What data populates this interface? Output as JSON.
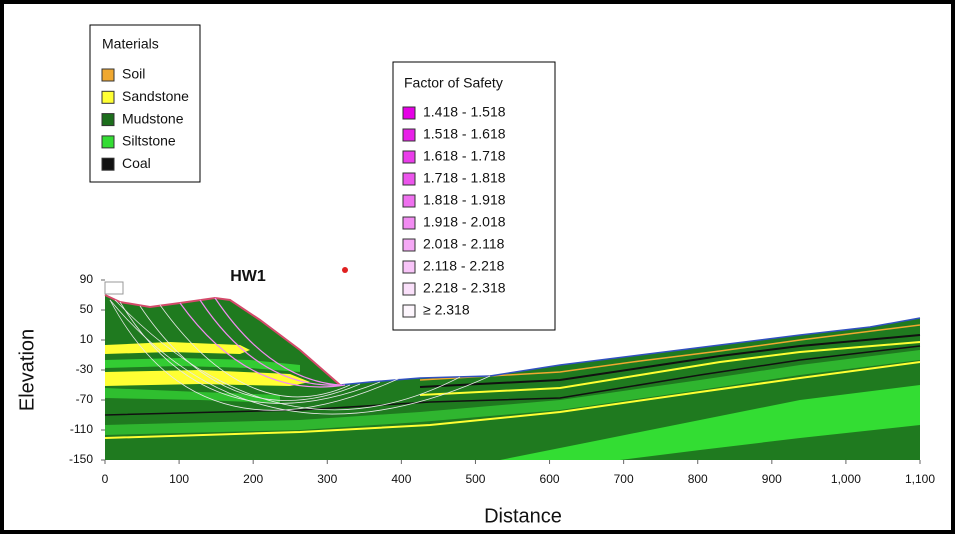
{
  "chart_data": {
    "type": "section",
    "annotation": "HW1",
    "xlabel": "Distance",
    "ylabel": "Elevation",
    "xlim": [
      0,
      1100
    ],
    "ylim": [
      -150,
      90
    ],
    "xticks": [
      0,
      100,
      200,
      300,
      400,
      500,
      600,
      700,
      800,
      900,
      {
        "value": 1000,
        "label": "1,000"
      },
      {
        "value": 1100,
        "label": "1,100"
      }
    ],
    "yticks": [
      -150,
      -110,
      -70,
      -30,
      10,
      50,
      90
    ],
    "materials": {
      "title": "Materials",
      "items": [
        {
          "name": "Soil",
          "color": "#f0a830"
        },
        {
          "name": "Sandstone",
          "color": "#ffff33"
        },
        {
          "name": "Mudstone",
          "color": "#1c6e1c"
        },
        {
          "name": "Siltstone",
          "color": "#33dd33"
        },
        {
          "name": "Coal",
          "color": "#111111"
        }
      ]
    },
    "fos_legend": {
      "title": "Factor of Safety",
      "items": [
        {
          "name": "1.418 - 1.518",
          "color": "#e600e6"
        },
        {
          "name": "1.518 - 1.618",
          "color": "#e820e8"
        },
        {
          "name": "1.618 - 1.718",
          "color": "#ea3cea"
        },
        {
          "name": "1.718 - 1.818",
          "color": "#ec55ec"
        },
        {
          "name": "1.818 - 1.918",
          "color": "#ef70ef"
        },
        {
          "name": "1.918 - 2.018",
          "color": "#f28cf2"
        },
        {
          "name": "2.018 - 2.118",
          "color": "#f5a8f5"
        },
        {
          "name": "2.118 - 2.218",
          "color": "#f8c4f8"
        },
        {
          "name": "2.218 - 2.318",
          "color": "#fae0fa"
        },
        {
          "name": "≥ 2.318",
          "color": "#fdf6fd"
        }
      ]
    }
  }
}
